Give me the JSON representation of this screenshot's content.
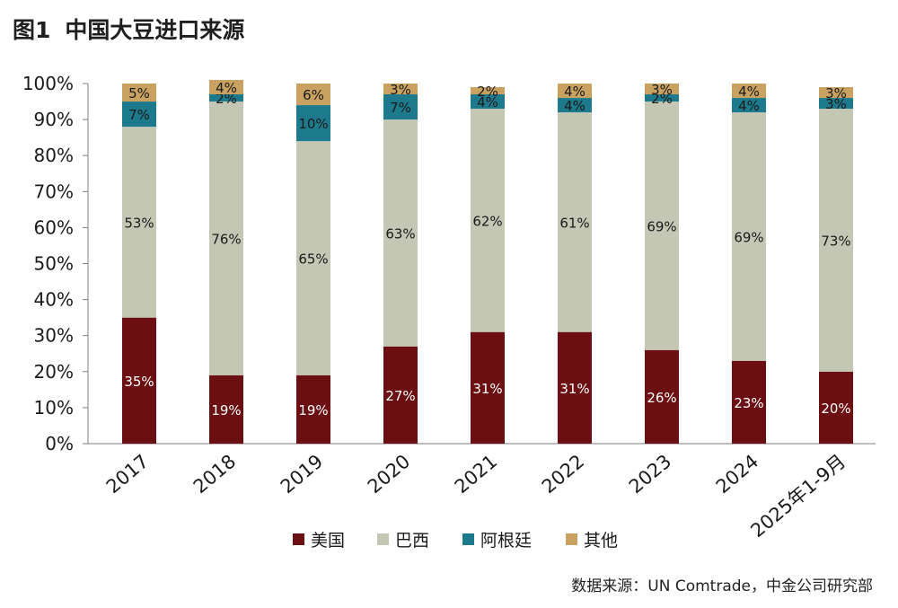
{
  "figure": {
    "number": "图1",
    "title": "中国大豆进口来源",
    "source": "数据来源：UN Comtrade，中金公司研究部"
  },
  "chart_data": {
    "type": "bar",
    "stacked": true,
    "percent": true,
    "categories": [
      "2017",
      "2018",
      "2019",
      "2020",
      "2021",
      "2022",
      "2023",
      "2024",
      "2025年1-9月"
    ],
    "series": [
      {
        "name": "美国",
        "color": "#6b0f12",
        "label_color": "#ffffff",
        "values": [
          35,
          19,
          19,
          27,
          31,
          31,
          26,
          23,
          20
        ]
      },
      {
        "name": "巴西",
        "color": "#c3c7b3",
        "label_color": "#1a1a1a",
        "values": [
          53,
          76,
          65,
          63,
          62,
          61,
          69,
          69,
          73
        ]
      },
      {
        "name": "阿根廷",
        "color": "#1d7a8c",
        "label_color": "#1a1a1a",
        "values": [
          7,
          2,
          10,
          7,
          4,
          4,
          2,
          4,
          3
        ]
      },
      {
        "name": "其他",
        "color": "#c9a261",
        "label_color": "#1a1a1a",
        "values": [
          5,
          4,
          6,
          3,
          2,
          4,
          3,
          4,
          3
        ]
      }
    ],
    "yticks": [
      "0%",
      "10%",
      "20%",
      "30%",
      "40%",
      "50%",
      "60%",
      "70%",
      "80%",
      "90%",
      "100%"
    ],
    "ylim": [
      0,
      100
    ],
    "legend_position": "bottom",
    "grid": false
  }
}
